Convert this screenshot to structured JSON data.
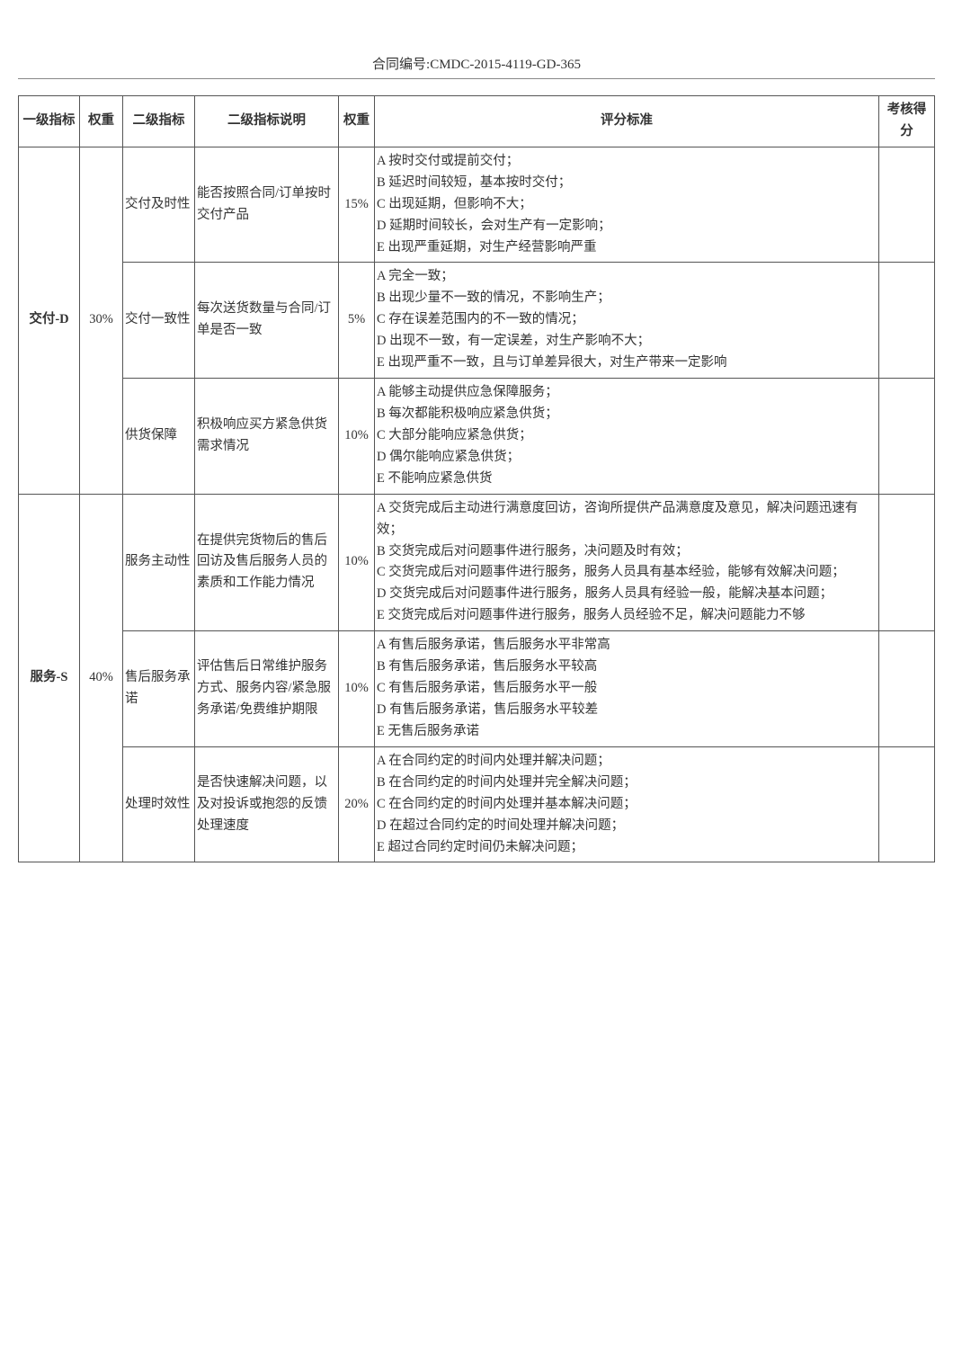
{
  "header": {
    "contract_label": "合同编号:CMDC-2015-4119-GD-365"
  },
  "table": {
    "headers": {
      "level1": "一级指标",
      "weight1": "权重",
      "level2": "二级指标",
      "desc": "二级指标说明",
      "weight2": "权重",
      "criteria": "评分标准",
      "score": "考核得分"
    },
    "groups": [
      {
        "level1": "交付-D",
        "weight1": "30%",
        "rows": [
          {
            "level2": "交付及时性",
            "desc": "能否按照合同/订单按时交付产品",
            "weight2": "15%",
            "criteria": [
              "A 按时交付或提前交付；",
              "B 延迟时间较短，基本按时交付；",
              "C 出现延期，但影响不大；",
              "D 延期时间较长，会对生产有一定影响；",
              "E 出现严重延期，对生产经营影响严重"
            ]
          },
          {
            "level2": "交付一致性",
            "desc": "每次送货数量与合同/订单是否一致",
            "weight2": "5%",
            "criteria": [
              "A 完全一致；",
              "B 出现少量不一致的情况，不影响生产；",
              "C 存在误差范围内的不一致的情况；",
              "D 出现不一致，有一定误差，对生产影响不大；",
              "E 出现严重不一致，且与订单差异很大，对生产带来一定影响"
            ]
          },
          {
            "level2": "供货保障",
            "desc": "积极响应买方紧急供货需求情况",
            "weight2": "10%",
            "criteria": [
              "A 能够主动提供应急保障服务；",
              "B 每次都能积极响应紧急供货；",
              "C 大部分能响应紧急供货；",
              "D 偶尔能响应紧急供货；",
              "E 不能响应紧急供货"
            ]
          }
        ]
      },
      {
        "level1": "服务-S",
        "weight1": "40%",
        "rows": [
          {
            "level2": "服务主动性",
            "desc": "在提供完货物后的售后回访及售后服务人员的素质和工作能力情况",
            "weight2": "10%",
            "criteria": [
              "A 交货完成后主动进行满意度回访，咨询所提供产品满意度及意见，解决问题迅速有效；",
              "B 交货完成后对问题事件进行服务，决问题及时有效；",
              "C 交货完成后对问题事件进行服务，服务人员具有基本经验，能够有效解决问题；",
              "D 交货完成后对问题事件进行服务，服务人员具有经验一般，能解决基本问题；",
              "E 交货完成后对问题事件进行服务，服务人员经验不足，解决问题能力不够"
            ]
          },
          {
            "level2": "售后服务承诺",
            "desc": "评估售后日常维护服务方式、服务内容/紧急服务承诺/免费维护期限",
            "weight2": "10%",
            "criteria": [
              "A 有售后服务承诺，售后服务水平非常高",
              "B 有售后服务承诺，售后服务水平较高",
              "C 有售后服务承诺，售后服务水平一般",
              "D 有售后服务承诺，售后服务水平较差",
              "E 无售后服务承诺"
            ]
          },
          {
            "level2": "处理时效性",
            "desc": "是否快速解决问题，以及对投诉或抱怨的反馈处理速度",
            "weight2": "20%",
            "criteria": [
              "A 在合同约定的时间内处理并解决问题；",
              "B 在合同约定的时间内处理并完全解决问题；",
              "C 在合同约定的时间内处理并基本解决问题；",
              "D 在超过合同约定的时间处理并解决问题；",
              "E 超过合同约定时间仍未解决问题；"
            ]
          }
        ]
      }
    ]
  }
}
